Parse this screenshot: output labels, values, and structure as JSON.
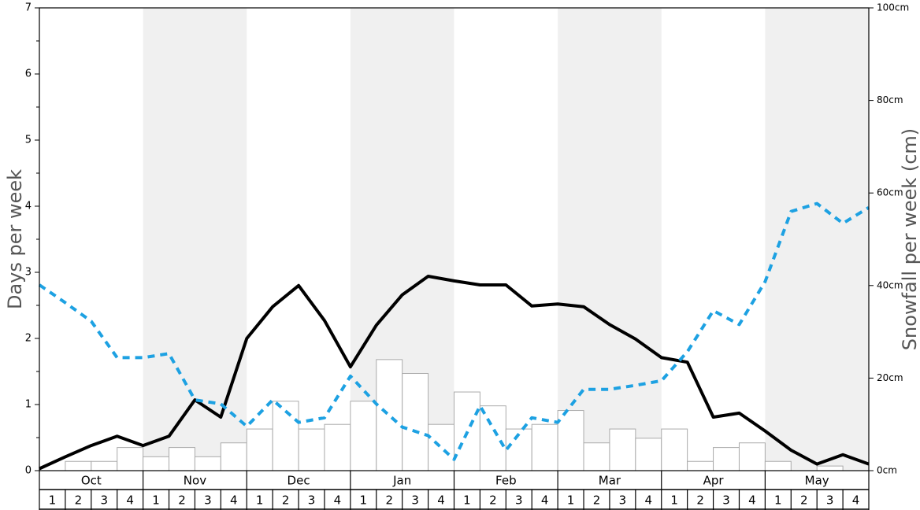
{
  "chart_data": {
    "type": "bar+line",
    "left_axis": {
      "label": "Days per week",
      "ylim": [
        0,
        7
      ],
      "ticks": [
        "0",
        "1",
        "2",
        "3",
        "4",
        "5",
        "6",
        "7"
      ]
    },
    "right_axis": {
      "label": "Snowfall per week (cm)",
      "ylim": [
        0,
        100
      ],
      "ticks": [
        "0cm",
        "20cm",
        "40cm",
        "60cm",
        "80cm",
        "100cm"
      ]
    },
    "months": [
      "Oct",
      "Nov",
      "Dec",
      "Jan",
      "Feb",
      "Mar",
      "Apr",
      "May"
    ],
    "week_labels": [
      "1",
      "2",
      "3",
      "4"
    ],
    "shaded_months": [
      "Nov",
      "Jan",
      "Mar",
      "May"
    ],
    "colors": {
      "bars_fill": "#ffffff",
      "bars_stroke": "#aaaaaa",
      "solid_line": "#000000",
      "dashed_line": "#1da1e2",
      "shade": "#f0f0f0"
    },
    "series": [
      {
        "kind": "bar",
        "axis": "right",
        "values": [
          0,
          2,
          2,
          5,
          3,
          5,
          3,
          6,
          9,
          15,
          9,
          10,
          15,
          24,
          21,
          10,
          17,
          14,
          9,
          10,
          13,
          6,
          9,
          7,
          9,
          2,
          5,
          6,
          2,
          0,
          1,
          0
        ]
      },
      {
        "kind": "line",
        "style": "solid",
        "axis": "left",
        "values": [
          0.03,
          0.21,
          0.38,
          0.52,
          0.38,
          0.52,
          1.07,
          0.81,
          2.0,
          2.48,
          2.8,
          2.27,
          1.57,
          2.2,
          2.66,
          2.94,
          2.87,
          2.81,
          2.81,
          2.49,
          2.52,
          2.48,
          2.21,
          1.99,
          1.71,
          1.64,
          0.81,
          0.87,
          0.6,
          0.31,
          0.1,
          0.24,
          0.1
        ]
      },
      {
        "kind": "line",
        "style": "dashed",
        "axis": "left",
        "values": [
          2.81,
          2.54,
          2.26,
          1.71,
          1.71,
          1.77,
          1.07,
          1.01,
          0.67,
          1.07,
          0.73,
          0.8,
          1.43,
          1.01,
          0.66,
          0.53,
          0.17,
          0.98,
          0.31,
          0.8,
          0.73,
          1.23,
          1.23,
          1.29,
          1.36,
          1.8,
          2.42,
          2.21,
          2.86,
          3.92,
          4.04,
          3.74,
          3.98
        ]
      }
    ]
  }
}
